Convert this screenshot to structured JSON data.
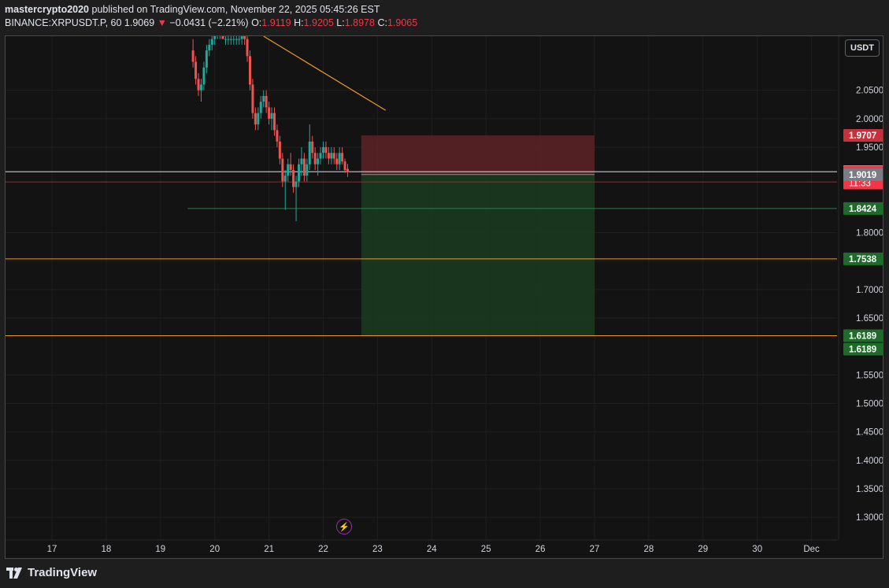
{
  "header": {
    "author": "mastercrypto2020",
    "published_text": "published on TradingView.com, November 22, 2025 05:45:26 EST",
    "symbol": "BINANCE:XRPUSDT.P, 60",
    "last": "1.9069",
    "change": "−0.0431 (−2.21%)",
    "o_label": "O:",
    "o_value": "1.9119",
    "h_label": "H:",
    "h_value": "1.9205",
    "l_label": "L:",
    "l_value": "1.8978",
    "c_label": "C:",
    "c_value": "1.9065"
  },
  "unit_button": "USDT",
  "footer": {
    "brand": "TradingView"
  },
  "colors": {
    "up": "#26a69a",
    "down": "#ef5350",
    "stop_zone": "#5e2226",
    "target_zone": "#1c3a1f",
    "line_orange": "#e89a2a",
    "line_red": "#a8252a",
    "line_green": "#2e7d4f"
  },
  "chart_data": {
    "type": "candlestick",
    "title": "",
    "xlabel": "",
    "ylabel": "",
    "ylim": [
      1.26,
      2.145
    ],
    "y_ticks": [
      "2.0500",
      "2.0000",
      "1.9500",
      "1.8000",
      "1.7500",
      "1.7000",
      "1.6500",
      "1.5500",
      "1.5000",
      "1.4500",
      "1.4000",
      "1.3500",
      "1.3000"
    ],
    "x_ticks": [
      "17",
      "18",
      "19",
      "20",
      "21",
      "22",
      "23",
      "24",
      "25",
      "26",
      "27",
      "28",
      "29",
      "30",
      "Dec"
    ],
    "x_tick_days": [
      17,
      18,
      19,
      20,
      21,
      22,
      23,
      24,
      25,
      26,
      27,
      28,
      29,
      30,
      31
    ],
    "candles_ohlc": [
      [
        19.6,
        2.12,
        2.14,
        2.09,
        2.1
      ],
      [
        19.65,
        2.1,
        2.11,
        2.06,
        2.07
      ],
      [
        19.7,
        2.07,
        2.08,
        2.04,
        2.05
      ],
      [
        19.75,
        2.05,
        2.07,
        2.03,
        2.06
      ],
      [
        19.8,
        2.06,
        2.1,
        2.05,
        2.09
      ],
      [
        19.85,
        2.09,
        2.13,
        2.08,
        2.12
      ],
      [
        19.9,
        2.12,
        2.14,
        2.11,
        2.13
      ],
      [
        19.95,
        2.13,
        2.15,
        2.12,
        2.14
      ],
      [
        20.0,
        2.14,
        2.16,
        2.13,
        2.15
      ],
      [
        20.05,
        2.15,
        2.16,
        2.14,
        2.15
      ],
      [
        20.1,
        2.15,
        2.16,
        2.14,
        2.15
      ],
      [
        20.15,
        2.15,
        2.16,
        2.14,
        2.14
      ],
      [
        20.2,
        2.14,
        2.15,
        2.13,
        2.14
      ],
      [
        20.25,
        2.14,
        2.15,
        2.13,
        2.14
      ],
      [
        20.3,
        2.14,
        2.15,
        2.13,
        2.14
      ],
      [
        20.35,
        2.14,
        2.15,
        2.13,
        2.14
      ],
      [
        20.4,
        2.14,
        2.15,
        2.13,
        2.14
      ],
      [
        20.45,
        2.14,
        2.15,
        2.13,
        2.14
      ],
      [
        20.5,
        2.14,
        2.15,
        2.13,
        2.15
      ],
      [
        20.55,
        2.15,
        2.16,
        2.13,
        2.14
      ],
      [
        20.6,
        2.14,
        2.15,
        2.1,
        2.11
      ],
      [
        20.65,
        2.11,
        2.12,
        2.05,
        2.06
      ],
      [
        20.7,
        2.06,
        2.07,
        2.0,
        2.01
      ],
      [
        20.75,
        2.01,
        2.02,
        1.98,
        1.99
      ],
      [
        20.8,
        1.99,
        2.02,
        1.98,
        2.01
      ],
      [
        20.85,
        2.01,
        2.04,
        2.0,
        2.03
      ],
      [
        20.9,
        2.03,
        2.05,
        2.02,
        2.04
      ],
      [
        20.95,
        2.04,
        2.05,
        2.01,
        2.02
      ],
      [
        21.0,
        2.02,
        2.03,
        1.99,
        2.0
      ],
      [
        21.05,
        2.0,
        2.02,
        1.98,
        2.01
      ],
      [
        21.1,
        2.01,
        2.02,
        1.97,
        1.98
      ],
      [
        21.15,
        1.98,
        1.99,
        1.95,
        1.96
      ],
      [
        21.2,
        1.96,
        1.97,
        1.92,
        1.93
      ],
      [
        21.25,
        1.93,
        1.94,
        1.88,
        1.89
      ],
      [
        21.3,
        1.89,
        1.91,
        1.84,
        1.9
      ],
      [
        21.35,
        1.9,
        1.93,
        1.89,
        1.92
      ],
      [
        21.4,
        1.92,
        1.94,
        1.9,
        1.91
      ],
      [
        21.45,
        1.91,
        1.92,
        1.87,
        1.88
      ],
      [
        21.5,
        1.88,
        1.9,
        1.82,
        1.89
      ],
      [
        21.55,
        1.89,
        1.93,
        1.88,
        1.92
      ],
      [
        21.6,
        1.92,
        1.95,
        1.9,
        1.93
      ],
      [
        21.65,
        1.93,
        1.94,
        1.89,
        1.9
      ],
      [
        21.7,
        1.9,
        1.93,
        1.89,
        1.92
      ],
      [
        21.75,
        1.92,
        1.99,
        1.91,
        1.96
      ],
      [
        21.8,
        1.96,
        1.97,
        1.93,
        1.94
      ],
      [
        21.85,
        1.94,
        1.95,
        1.91,
        1.92
      ],
      [
        21.9,
        1.92,
        1.94,
        1.9,
        1.93
      ],
      [
        21.95,
        1.93,
        1.95,
        1.92,
        1.94
      ],
      [
        22.0,
        1.94,
        1.96,
        1.93,
        1.95
      ],
      [
        22.05,
        1.95,
        1.96,
        1.93,
        1.94
      ],
      [
        22.1,
        1.94,
        1.95,
        1.92,
        1.93
      ],
      [
        22.15,
        1.93,
        1.95,
        1.92,
        1.94
      ],
      [
        22.2,
        1.94,
        1.95,
        1.92,
        1.93
      ],
      [
        22.25,
        1.93,
        1.94,
        1.91,
        1.92
      ],
      [
        22.3,
        1.92,
        1.95,
        1.91,
        1.94
      ],
      [
        22.35,
        1.94,
        1.95,
        1.92,
        1.925
      ],
      [
        22.4,
        1.925,
        1.93,
        1.905,
        1.91
      ],
      [
        22.45,
        1.9119,
        1.9205,
        1.8978,
        1.9065
      ]
    ],
    "position": {
      "start_day": 22.7,
      "end_day": 27.0,
      "entry": 1.9019,
      "stop": 1.9707,
      "target": 1.6189
    },
    "horizontal_lines": [
      {
        "price": 1.907,
        "from_day": 16.0,
        "color": "#e0e3eb"
      },
      {
        "price": 1.889,
        "from_day": 16.0,
        "color": "#a8252a"
      },
      {
        "price": 1.8424,
        "from_day": 19.5,
        "color": "#2e7d4f"
      },
      {
        "price": 1.7538,
        "from_day": 16.0,
        "color": "#e89a2a"
      },
      {
        "price": 1.6189,
        "from_day": 16.0,
        "color": "#e89a2a"
      }
    ],
    "trendline": {
      "from": [
        20.9,
        2.145
      ],
      "to": [
        23.15,
        2.0148
      ],
      "color": "#e89a2a"
    },
    "price_labels": [
      {
        "text": "1.9707",
        "price": 1.9707,
        "bg": "#c8303c",
        "fg": "#ffffff"
      },
      {
        "text": "1.9070",
        "price": 1.907,
        "bg": "#ffffff",
        "fg": "#131313"
      },
      {
        "text": "1.9065",
        "price": 1.9065,
        "bg": "#f23645",
        "fg": "#ffffff",
        "sub": "11:33"
      },
      {
        "text": "1.9019",
        "price": 1.9019,
        "bg": "#7a7d86",
        "fg": "#ffffff"
      },
      {
        "text": "1.8424",
        "price": 1.8424,
        "bg": "#1e6b2a",
        "fg": "#ffffff"
      },
      {
        "text": "1.7538",
        "price": 1.7538,
        "bg": "#1e6b2a",
        "fg": "#ffffff"
      },
      {
        "text": "1.6189",
        "price": 1.6189,
        "bg": "#1e6b2a",
        "fg": "#ffffff"
      },
      {
        "text": "1.6189",
        "price": 1.6189,
        "bg": "#1e6b2a",
        "fg": "#ffffff",
        "offset": 1
      }
    ]
  }
}
